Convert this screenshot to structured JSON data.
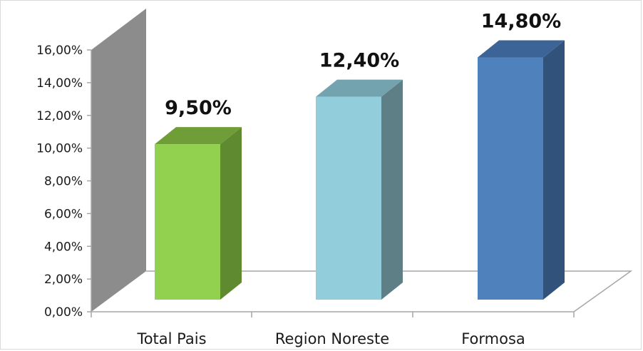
{
  "chart_data": {
    "type": "bar",
    "style": "3d-column",
    "categories": [
      "Total Pais",
      "Region Noreste",
      "Formosa"
    ],
    "values": [
      9.5,
      12.4,
      14.8
    ],
    "data_labels": [
      "9,50%",
      "12,40%",
      "14,80%"
    ],
    "y_ticks": [
      "0,00%",
      "2,00%",
      "4,00%",
      "6,00%",
      "8,00%",
      "10,00%",
      "12,00%",
      "14,00%",
      "16,00%"
    ],
    "ylim": [
      0,
      16
    ],
    "grid": false,
    "legend": "none",
    "colors": {
      "bars": [
        {
          "front": "#92d050",
          "side": "#5f8a30",
          "top": "#6f9e38"
        },
        {
          "front": "#92cddc",
          "side": "#5f7f87",
          "top": "#74a3b0"
        },
        {
          "front": "#4f81bd",
          "side": "#31527a",
          "top": "#3d6496"
        }
      ],
      "back_wall": "#8c8c8c",
      "axis_line": "#a6a6a6"
    }
  }
}
